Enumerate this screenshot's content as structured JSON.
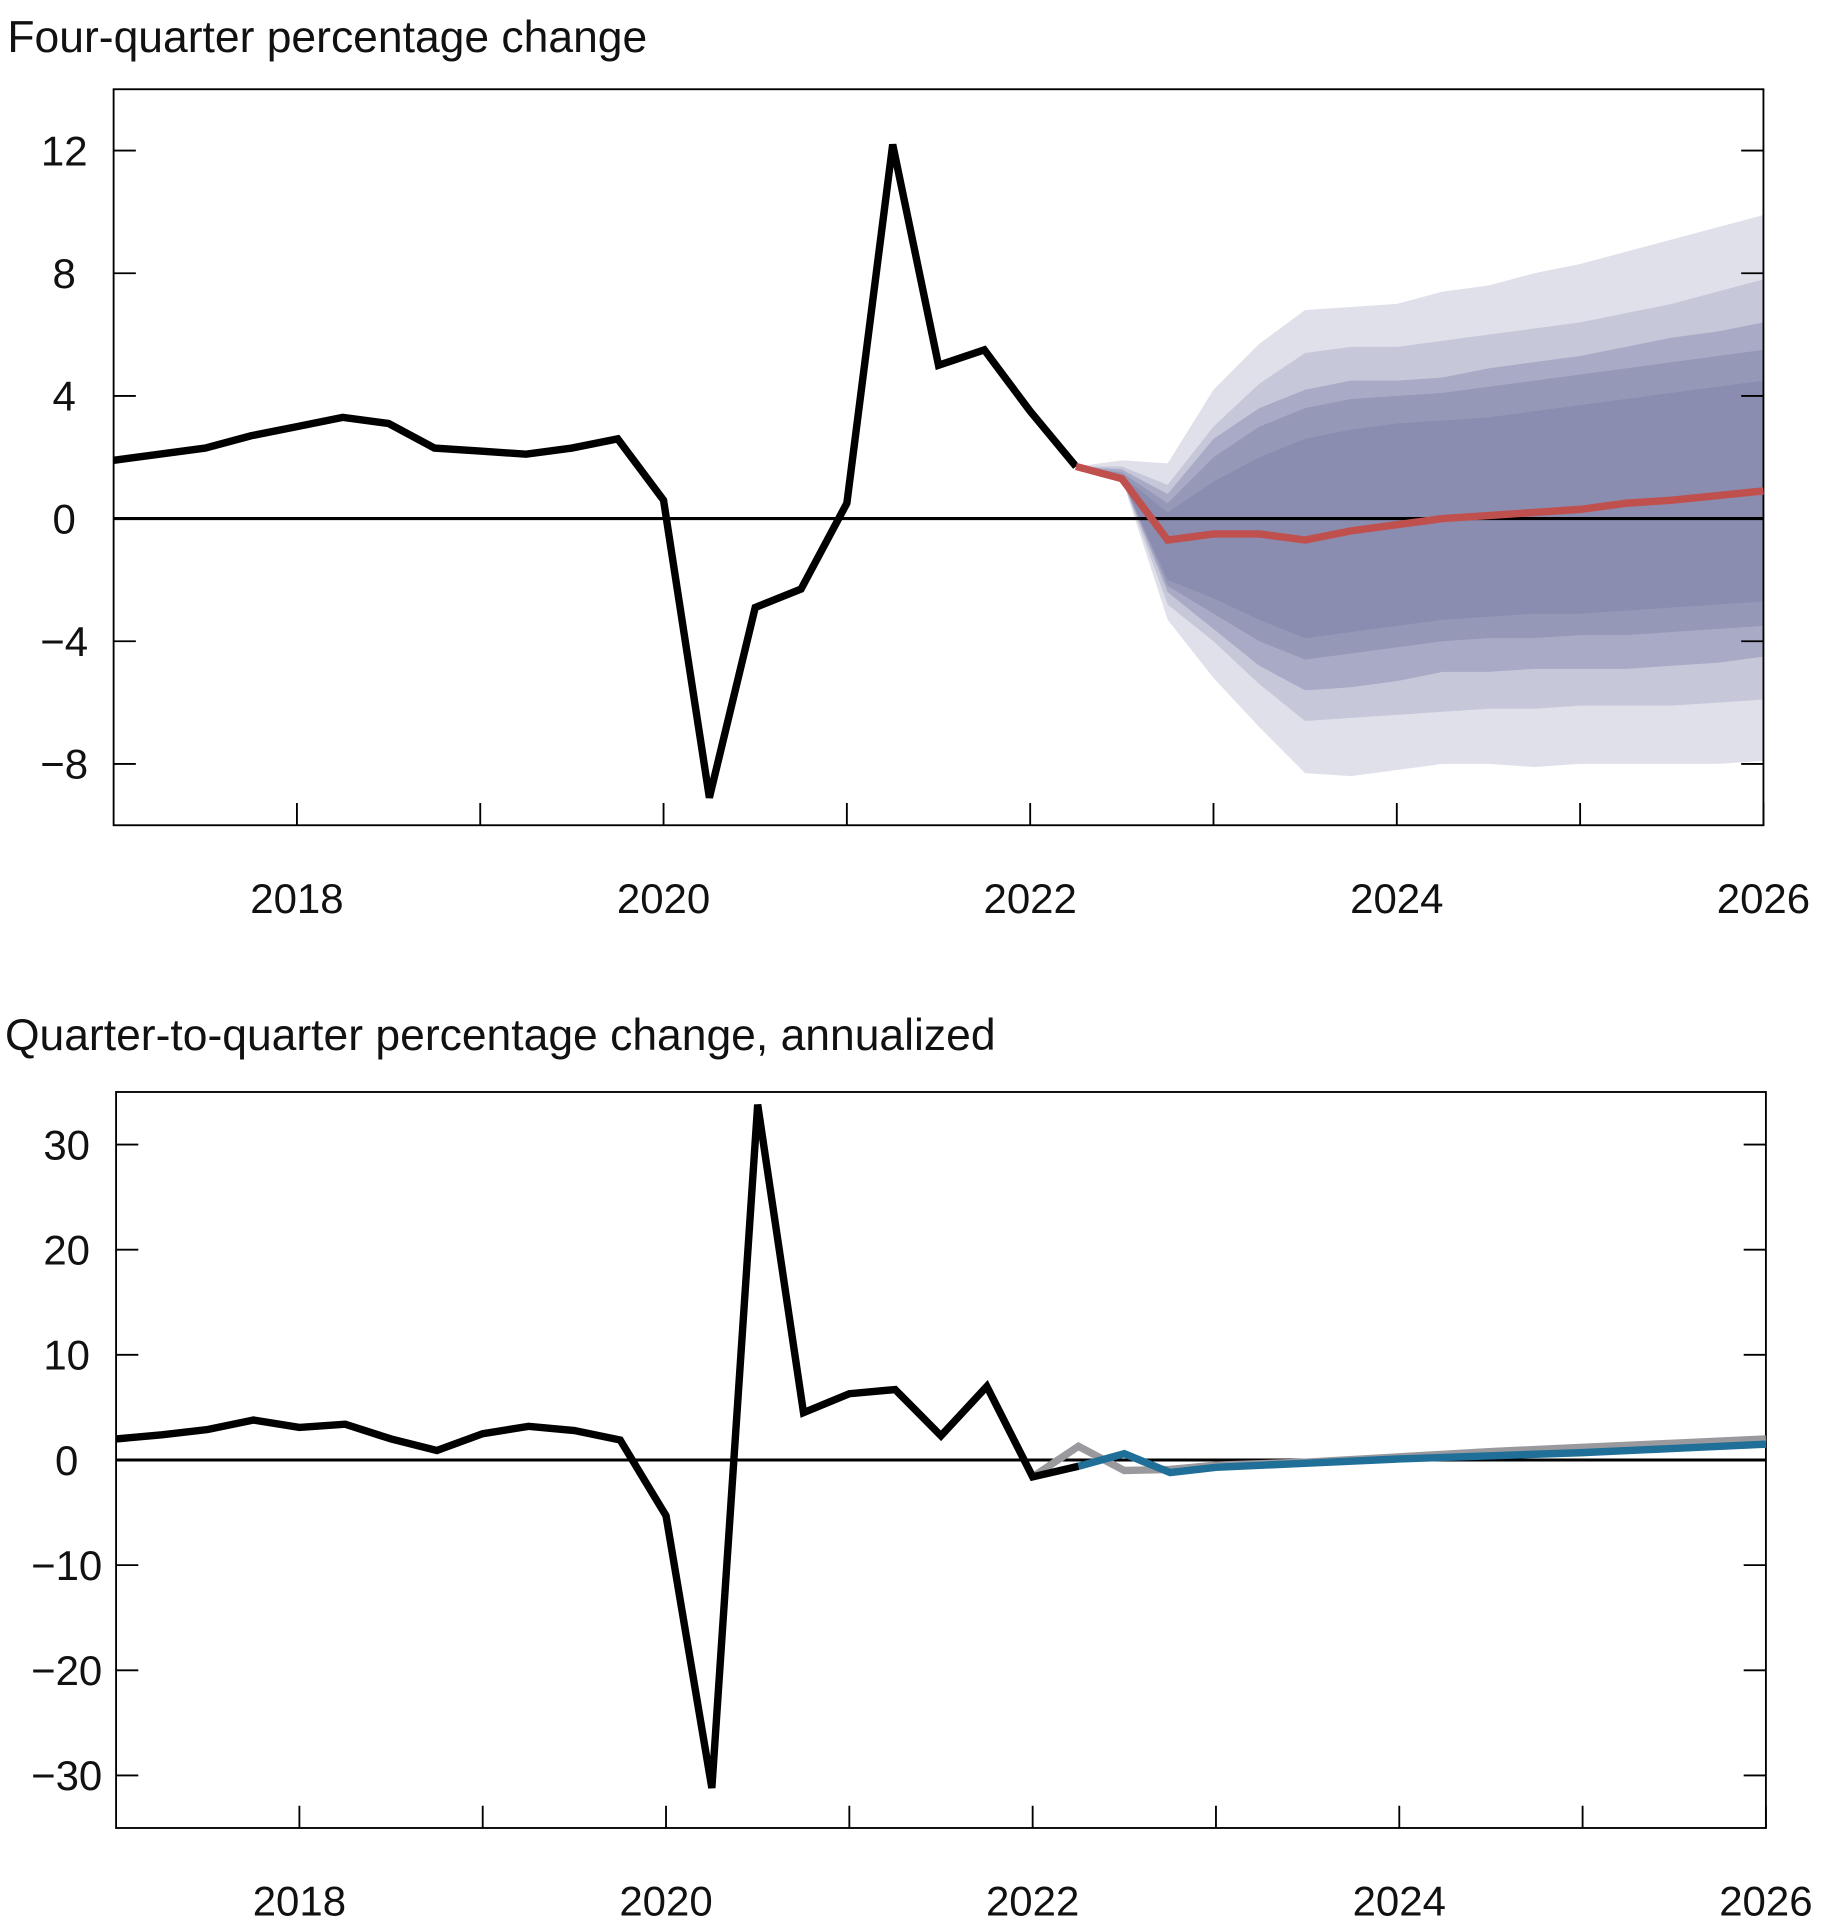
{
  "chart_data": [
    {
      "type": "line",
      "title": "Four-quarter percentage change",
      "xlabel": "",
      "ylabel": "",
      "xlim": [
        2017.0,
        2026.0
      ],
      "ylim": [
        -10,
        14
      ],
      "yticks": [
        12,
        8,
        4,
        0,
        -4,
        -8
      ],
      "ytick_labels": [
        "12",
        "8",
        "4",
        "0",
        "−4",
        "−8"
      ],
      "xticks": [
        2018,
        2019,
        2020,
        2021,
        2022,
        2023,
        2024,
        2025,
        2026
      ],
      "xtick_labels": [
        "2018",
        "2020",
        "2022",
        "2024",
        "2026"
      ],
      "xtick_label_years": [
        2018,
        2020,
        2022,
        2024,
        2026
      ],
      "grid": false,
      "series": [
        {
          "name": "history",
          "color": "#000000",
          "x": [
            2017.0,
            2017.25,
            2017.5,
            2017.75,
            2018.0,
            2018.25,
            2018.5,
            2018.75,
            2019.0,
            2019.25,
            2019.5,
            2019.75,
            2020.0,
            2020.25,
            2020.5,
            2020.75,
            2021.0,
            2021.25,
            2021.5,
            2021.75,
            2022.0,
            2022.25
          ],
          "y": [
            1.9,
            2.1,
            2.3,
            2.7,
            3.0,
            3.3,
            3.1,
            2.3,
            2.2,
            2.1,
            2.3,
            2.6,
            0.6,
            -9.1,
            -2.9,
            -2.3,
            0.5,
            12.2,
            5.0,
            5.5,
            3.5,
            1.7
          ]
        },
        {
          "name": "forecast",
          "color": "#c0504d",
          "x": [
            2022.25,
            2022.5,
            2022.75,
            2023.0,
            2023.25,
            2023.5,
            2023.75,
            2024.0,
            2024.25,
            2024.5,
            2024.75,
            2025.0,
            2025.25,
            2025.5,
            2025.75,
            2026.0
          ],
          "y": [
            1.7,
            1.3,
            -0.7,
            -0.5,
            -0.5,
            -0.7,
            -0.4,
            -0.2,
            0.0,
            0.1,
            0.2,
            0.3,
            0.5,
            0.6,
            0.75,
            0.9
          ]
        }
      ],
      "fan": {
        "x": [
          2022.25,
          2022.5,
          2022.75,
          2023.0,
          2023.25,
          2023.5,
          2023.75,
          2024.0,
          2024.25,
          2024.5,
          2024.75,
          2025.0,
          2025.25,
          2025.5,
          2025.75,
          2026.0
        ],
        "bands": [
          {
            "color": "#e0e0ea",
            "upper": [
              1.7,
              1.9,
              1.8,
              4.2,
              5.7,
              6.8,
              6.9,
              7.0,
              7.4,
              7.6,
              8.0,
              8.3,
              8.7,
              9.1,
              9.5,
              9.9
            ],
            "lower": [
              1.7,
              1.3,
              -3.3,
              -5.2,
              -6.8,
              -8.3,
              -8.4,
              -8.2,
              -8.0,
              -8.0,
              -8.1,
              -8.0,
              -8.0,
              -8.0,
              -8.0,
              -7.9
            ]
          },
          {
            "color": "#c6c7d9",
            "upper": [
              1.7,
              1.7,
              1.1,
              3.0,
              4.4,
              5.4,
              5.6,
              5.6,
              5.8,
              6.0,
              6.2,
              6.4,
              6.7,
              7.0,
              7.4,
              7.8
            ],
            "lower": [
              1.7,
              1.3,
              -2.8,
              -4.0,
              -5.4,
              -6.6,
              -6.5,
              -6.4,
              -6.3,
              -6.2,
              -6.2,
              -6.1,
              -6.1,
              -6.1,
              -6.0,
              -5.9
            ]
          },
          {
            "color": "#a9abc6",
            "upper": [
              1.7,
              1.6,
              0.8,
              2.6,
              3.6,
              4.2,
              4.5,
              4.5,
              4.6,
              4.9,
              5.1,
              5.3,
              5.6,
              5.9,
              6.1,
              6.4
            ],
            "lower": [
              1.7,
              1.3,
              -2.4,
              -3.6,
              -4.8,
              -5.6,
              -5.5,
              -5.3,
              -5.0,
              -5.0,
              -4.9,
              -4.9,
              -4.9,
              -4.8,
              -4.7,
              -4.5
            ]
          },
          {
            "color": "#9698b7",
            "upper": [
              1.7,
              1.5,
              0.5,
              2.0,
              3.0,
              3.6,
              3.9,
              4.0,
              4.1,
              4.3,
              4.5,
              4.7,
              4.9,
              5.1,
              5.3,
              5.5
            ],
            "lower": [
              1.7,
              1.3,
              -2.2,
              -3.1,
              -4.0,
              -4.6,
              -4.4,
              -4.2,
              -4.0,
              -3.9,
              -3.9,
              -3.8,
              -3.8,
              -3.7,
              -3.6,
              -3.5
            ]
          },
          {
            "color": "#8a8db0",
            "upper": [
              1.7,
              1.4,
              0.2,
              1.2,
              2.0,
              2.6,
              2.9,
              3.1,
              3.2,
              3.3,
              3.5,
              3.7,
              3.9,
              4.1,
              4.3,
              4.5
            ],
            "lower": [
              1.7,
              1.3,
              -2.0,
              -2.6,
              -3.3,
              -3.9,
              -3.7,
              -3.5,
              -3.3,
              -3.2,
              -3.1,
              -3.1,
              -3.0,
              -2.9,
              -2.8,
              -2.7
            ]
          }
        ]
      }
    },
    {
      "type": "line",
      "title": "Quarter-to-quarter percentage change, annualized",
      "xlabel": "",
      "ylabel": "",
      "xlim": [
        2017.0,
        2026.0
      ],
      "ylim": [
        -35,
        35
      ],
      "yticks": [
        30,
        20,
        10,
        0,
        -10,
        -20,
        -30
      ],
      "ytick_labels": [
        "30",
        "20",
        "10",
        "0",
        "−10",
        "−20",
        "−30"
      ],
      "xticks": [
        2018,
        2019,
        2020,
        2021,
        2022,
        2023,
        2024,
        2025,
        2026
      ],
      "xtick_labels": [
        "2018",
        "2020",
        "2022",
        "2024",
        "2026"
      ],
      "xtick_label_years": [
        2018,
        2020,
        2022,
        2024,
        2026
      ],
      "grid": false,
      "series": [
        {
          "name": "alternative-forecast",
          "color": "#9a9a9e",
          "x": [
            2022.0,
            2022.25,
            2022.5,
            2022.75,
            2023.0,
            2023.5,
            2024.0,
            2024.5,
            2025.0,
            2025.5,
            2026.0
          ],
          "y": [
            -1.6,
            1.3,
            -1.0,
            -0.9,
            -0.5,
            -0.2,
            0.3,
            0.8,
            1.2,
            1.6,
            2.0
          ]
        },
        {
          "name": "forecast",
          "color": "#1f6f98",
          "x": [
            2022.25,
            2022.5,
            2022.75,
            2023.0,
            2023.5,
            2024.0,
            2024.5,
            2025.0,
            2025.5,
            2026.0
          ],
          "y": [
            -0.6,
            0.6,
            -1.2,
            -0.7,
            -0.3,
            0.1,
            0.4,
            0.7,
            1.1,
            1.5
          ]
        },
        {
          "name": "history",
          "color": "#000000",
          "x": [
            2017.0,
            2017.25,
            2017.5,
            2017.75,
            2018.0,
            2018.25,
            2018.5,
            2018.75,
            2019.0,
            2019.25,
            2019.5,
            2019.75,
            2020.0,
            2020.25,
            2020.5,
            2020.75,
            2021.0,
            2021.25,
            2021.5,
            2021.75,
            2022.0,
            2022.25
          ],
          "y": [
            2.0,
            2.4,
            2.9,
            3.8,
            3.1,
            3.4,
            2.0,
            0.9,
            2.5,
            3.2,
            2.8,
            1.9,
            -5.3,
            -31.2,
            33.8,
            4.5,
            6.3,
            6.7,
            2.3,
            7.0,
            -1.6,
            -0.6
          ]
        }
      ]
    }
  ]
}
